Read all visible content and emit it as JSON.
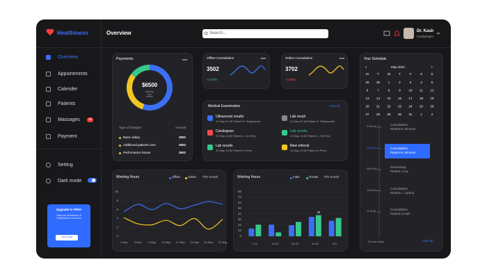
{
  "sidebar": {
    "brand": "Healthiness",
    "nav": [
      "Overview",
      "Appointments",
      "Calender",
      "Patients",
      "Massages",
      "Payment"
    ],
    "badge": "10",
    "settings": [
      "Setting",
      "Dark mode"
    ],
    "upgrade": {
      "title": "Upgrade to PRO!",
      "text": "Discover all features of Healthiness in services",
      "button": "Get it Now"
    }
  },
  "header": {
    "title": "Overview",
    "search": "Search...",
    "user": "Dr. Kash",
    "role": "Cardiologist"
  },
  "payments": {
    "title": "Payments",
    "total": "$6500",
    "caption": "starting this month",
    "shares": [
      {
        "color": "#3b6ff5",
        "value": 55
      },
      {
        "color": "#f3c623",
        "value": 30
      },
      {
        "color": "#36c98a",
        "value": 15
      }
    ],
    "columns": [
      "Type of charges",
      "Amount"
    ],
    "rows": [
      {
        "label": "Basic salary",
        "amount": 3502
      },
      {
        "label": "Additional patients care",
        "amount": 3502
      },
      {
        "label": "Performance bonus",
        "amount": 3502
      }
    ]
  },
  "consultations": [
    {
      "title": "Offline Consultation",
      "value": 3502,
      "change": "+3,34%",
      "color": "#3b6ff5",
      "change_color": "#36c98a"
    },
    {
      "title": "Online Consultation",
      "value": 3702,
      "change": "+3,36%",
      "color": "#f3c623",
      "change_color": "#ff4d4d"
    }
  ],
  "medical": {
    "title": "Medical Examination",
    "link": "View all",
    "items": [
      {
        "title": "Ultrasound results",
        "detail": "11 May 07:48 Patient E. Ratpkowski",
        "color": "#3b6ff5"
      },
      {
        "title": "Cardiogram",
        "detail": "10 May 16:32 Patient L. Del Rey",
        "color": "#ff4d4d"
      },
      {
        "title": "Lab results",
        "detail": "10 May 10:32 Patient K.Perry",
        "color": "#36c98a"
      },
      {
        "title": "Lab result",
        "detail": "11 May 07:48 Patient E. Ratpkowski",
        "color": "#888888"
      },
      {
        "title": "Lab results",
        "detail": "10 May 16:32 Patient L. Del Rey",
        "color": "#36c98a"
      },
      {
        "title": "New referral",
        "detail": "10 May 10:32 Patient K.Perry",
        "color": "#f3c623"
      }
    ]
  },
  "working_hours": {
    "type": "line",
    "title": "Working Hours",
    "period": "This month",
    "categories": [
      "1 May",
      "5 May",
      "9 May",
      "13 May",
      "17 May",
      "21 May",
      "25 May",
      "31 May"
    ],
    "series": [
      {
        "name": "offline",
        "color": "#3b6ff5",
        "values": [
          5.5,
          7.2,
          6.0,
          7.4,
          6.2,
          7.0,
          7.8,
          7.2
        ]
      },
      {
        "name": "online",
        "color": "#f3c623",
        "values": [
          4.2,
          2.8,
          2.6,
          3.6,
          2.4,
          4.0,
          1.6,
          3.8
        ]
      }
    ],
    "ylim": [
      0,
      10
    ],
    "yticks": [
      0,
      2,
      4,
      6,
      8,
      10
    ]
  },
  "demographics": {
    "type": "bar",
    "title": "Working Hours",
    "period": "This month",
    "categories": [
      "0-12",
      "13-25",
      "26-34",
      "34-49",
      "50+"
    ],
    "series": [
      {
        "name": "male",
        "color": "#3b6ff5",
        "values": [
          14,
          21,
          20,
          35,
          28
        ]
      },
      {
        "name": "female",
        "color": "#36c98a",
        "values": [
          21,
          7,
          26,
          38,
          33
        ]
      }
    ],
    "ylim": [
      0,
      80
    ],
    "yticks": [
      0,
      10,
      20,
      30,
      40,
      50,
      60,
      70,
      80
    ]
  },
  "schedule": {
    "title": "Your Schedule",
    "month": "May 2022",
    "weekdays": [
      "M",
      "T",
      "W",
      "T",
      "F",
      "S",
      "S"
    ],
    "weeks": [
      [
        "29",
        "30",
        "1",
        "2",
        "3",
        "4",
        "5"
      ],
      [
        "6",
        "7",
        "8",
        "9",
        "10",
        "11",
        "12"
      ],
      [
        "13",
        "14",
        "15",
        "16",
        "17",
        "18",
        "19"
      ],
      [
        "20",
        "21",
        "22",
        "23",
        "24",
        "25",
        "26"
      ],
      [
        "27",
        "28",
        "29",
        "30",
        "31",
        "1",
        "2"
      ]
    ],
    "events": [
      {
        "time": "07:00 am",
        "title": "Consultation",
        "patient": "Patient B.Johnson"
      },
      {
        "time": "08:00 am",
        "title": "Consultation",
        "patient": "Patient B.Johnson"
      },
      {
        "time": "09:00 am",
        "title": "Recheckup",
        "patient": "Patient J.Ley"
      },
      {
        "time": "10:00 am",
        "title": "Consultation",
        "patient": "Patient L. Larbon"
      },
      {
        "time": "11:00 am",
        "title": "Consultation",
        "patient": "Patient G.Kah"
      }
    ],
    "active": 1,
    "more": "10 more today",
    "link": "View all"
  }
}
